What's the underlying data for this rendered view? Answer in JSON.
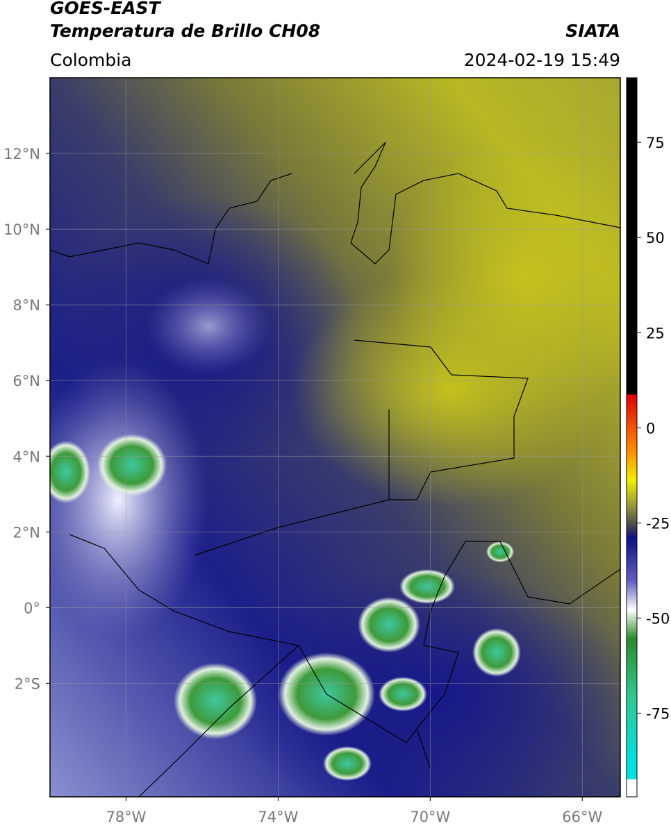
{
  "header": {
    "satellite": "GOES-EAST",
    "title": "Temperatura de Brillo CH08",
    "source": "SIATA",
    "region": "Colombia",
    "datetime": "2024-02-19 15:49"
  },
  "map": {
    "lon_range": [
      -80,
      -65
    ],
    "lat_range": [
      -5,
      14
    ],
    "lat_ticks": [
      {
        "value": 12,
        "label": "12°N"
      },
      {
        "value": 10,
        "label": "10°N"
      },
      {
        "value": 8,
        "label": "8°N"
      },
      {
        "value": 6,
        "label": "6°N"
      },
      {
        "value": 4,
        "label": "4°N"
      },
      {
        "value": 2,
        "label": "2°N"
      },
      {
        "value": 0,
        "label": "0°"
      },
      {
        "value": -2,
        "label": "2°S"
      }
    ],
    "lon_ticks": [
      {
        "value": -78,
        "label": "78°W"
      },
      {
        "value": -74,
        "label": "74°W"
      },
      {
        "value": -70,
        "label": "70°W"
      },
      {
        "value": -66,
        "label": "66°W"
      }
    ]
  },
  "colorbar": {
    "range": [
      -97,
      92
    ],
    "ticks": [
      75,
      50,
      25,
      0,
      -25,
      -50,
      -75
    ]
  }
}
